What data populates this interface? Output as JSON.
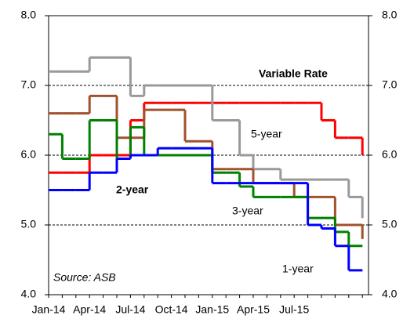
{
  "chart_data": {
    "type": "step",
    "categories": [
      "Jan-14",
      null,
      null,
      "Apr-14",
      null,
      null,
      "Jul-14",
      null,
      null,
      "Oct-14",
      null,
      null,
      "Jan-15",
      null,
      null,
      "Apr-15",
      null,
      null,
      "Jul-15",
      null,
      null,
      null,
      null,
      null
    ],
    "series": [
      {
        "name": "Variable Rate",
        "color": "#ff0000",
        "values": [
          5.75,
          5.75,
          5.75,
          6.0,
          6.0,
          6.0,
          6.5,
          6.75,
          6.75,
          6.75,
          6.75,
          6.75,
          6.75,
          6.75,
          6.75,
          6.75,
          6.75,
          6.75,
          6.75,
          6.75,
          6.5,
          6.25,
          6.25,
          6.0
        ]
      },
      {
        "name": "5-year",
        "color": "#999999",
        "values": [
          7.2,
          7.2,
          7.2,
          7.4,
          7.4,
          7.4,
          6.85,
          7.0,
          7.0,
          7.0,
          7.0,
          7.0,
          6.5,
          6.5,
          6.0,
          5.8,
          5.8,
          5.65,
          5.65,
          5.65,
          5.65,
          5.65,
          5.4,
          5.1
        ]
      },
      {
        "name": "3-year",
        "color": "#a0522d",
        "values": [
          6.6,
          6.6,
          6.6,
          6.85,
          6.85,
          6.25,
          6.25,
          6.65,
          6.65,
          6.65,
          6.2,
          6.2,
          5.8,
          5.8,
          5.8,
          5.6,
          5.6,
          5.6,
          5.4,
          5.4,
          5.4,
          5.0,
          5.0,
          4.8
        ]
      },
      {
        "name": "2-year",
        "color": "#008000",
        "values": [
          6.3,
          5.95,
          5.95,
          6.5,
          6.5,
          5.95,
          6.4,
          6.0,
          6.0,
          6.0,
          6.0,
          6.0,
          5.75,
          5.75,
          5.55,
          5.4,
          5.4,
          5.4,
          5.4,
          5.1,
          5.1,
          4.9,
          4.7,
          4.7
        ]
      },
      {
        "name": "1-year",
        "color": "#0000ff",
        "values": [
          5.5,
          5.5,
          5.5,
          5.75,
          5.75,
          5.95,
          6.0,
          6.0,
          6.1,
          6.1,
          6.1,
          6.1,
          5.6,
          5.6,
          5.6,
          5.6,
          5.6,
          5.6,
          5.6,
          5.0,
          4.95,
          4.7,
          4.35,
          4.35
        ]
      }
    ],
    "annotation": "Source:  ASB",
    "ylim": [
      4,
      8
    ],
    "yticks": [
      {
        "value": 4,
        "label": "4.0"
      },
      {
        "value": 5,
        "label": "5.0"
      },
      {
        "value": 6,
        "label": "6.0"
      },
      {
        "value": 7,
        "label": "7.0"
      },
      {
        "value": 8,
        "label": "8.0"
      }
    ],
    "y2lim": [
      4,
      8
    ],
    "y2ticks": [
      {
        "value": 4,
        "label": "4.0"
      },
      {
        "value": 5,
        "label": "5.0"
      },
      {
        "value": 6,
        "label": "6.0"
      },
      {
        "value": 7,
        "label": "7.0"
      },
      {
        "value": 8,
        "label": "8.0"
      }
    ],
    "grid": true
  }
}
